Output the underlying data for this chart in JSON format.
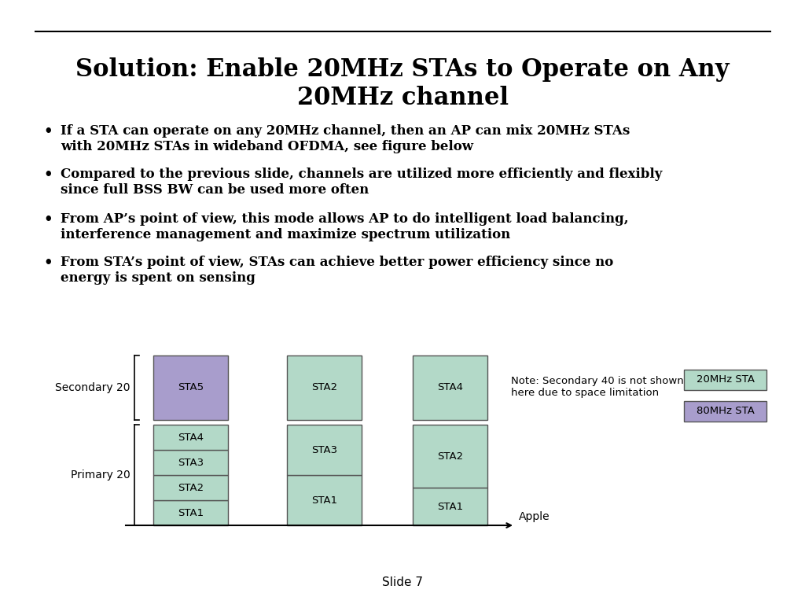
{
  "title": "Solution: Enable 20MHz STAs to Operate on Any\n20MHz channel",
  "bullets": [
    "If a STA can operate on any 20MHz channel, then an AP can mix 20MHz STAs\nwith 20MHz STAs in wideband OFDMA, see figure below",
    "Compared to the previous slide, channels are utilized more efficiently and flexibly\nsince full BSS BW can be used more often",
    "From AP’s point of view, this mode allows AP to do intelligent load balancing,\ninterference management and maximize spectrum utilization",
    "From STA’s point of view, STAs can achieve better power efficiency since no\nenergy is spent on sensing"
  ],
  "color_20mhz": "#b3d9c8",
  "color_80mhz": "#a89dcc",
  "color_border": "#555555",
  "background": "#ffffff",
  "slide_label": "Slide 7",
  "footer_right": "Apple",
  "note_text": "Note: Secondary 40 is not shown\nhere due to space limitation",
  "legend_20mhz": "20MHz STA",
  "legend_80mhz": "80MHz STA",
  "label_secondary20": "Secondary 20",
  "label_primary20": "Primary 20"
}
